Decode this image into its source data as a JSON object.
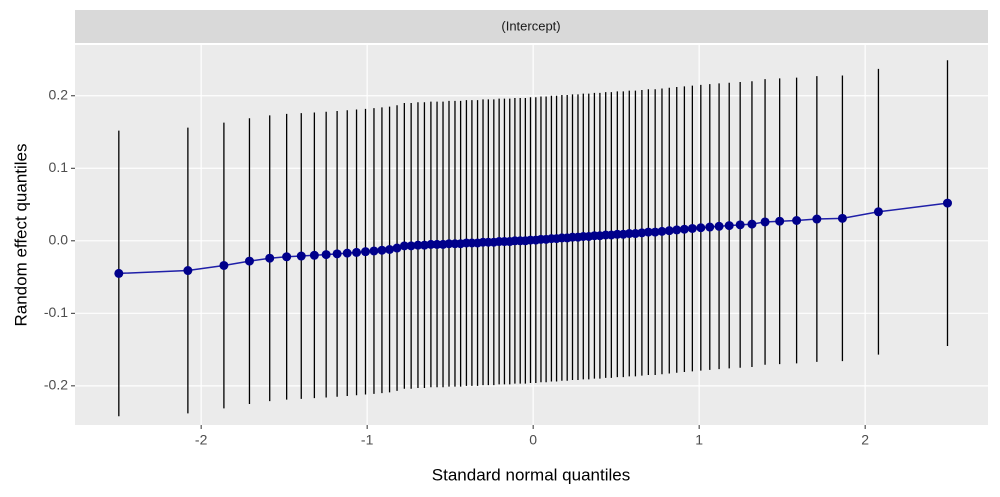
{
  "chart_data": {
    "type": "scatter",
    "panel_label": "(Intercept)",
    "x_label": "Standard normal quantiles",
    "y_label": "Random effect quantiles",
    "x": [
      -2.496,
      -2.08,
      -1.863,
      -1.709,
      -1.587,
      -1.485,
      -1.397,
      -1.318,
      -1.247,
      -1.181,
      -1.12,
      -1.064,
      -1.01,
      -0.959,
      -0.911,
      -0.865,
      -0.82,
      -0.776,
      -0.735,
      -0.694,
      -0.655,
      -0.616,
      -0.579,
      -0.543,
      -0.507,
      -0.471,
      -0.437,
      -0.402,
      -0.369,
      -0.335,
      -0.302,
      -0.27,
      -0.237,
      -0.205,
      -0.173,
      -0.141,
      -0.11,
      -0.078,
      -0.047,
      -0.016,
      0.016,
      0.047,
      0.078,
      0.11,
      0.141,
      0.173,
      0.205,
      0.237,
      0.27,
      0.302,
      0.335,
      0.369,
      0.402,
      0.437,
      0.471,
      0.507,
      0.543,
      0.579,
      0.616,
      0.655,
      0.694,
      0.735,
      0.776,
      0.82,
      0.865,
      0.911,
      0.959,
      1.01,
      1.064,
      1.12,
      1.181,
      1.247,
      1.318,
      1.397,
      1.485,
      1.587,
      1.709,
      1.863,
      2.08,
      2.496
    ],
    "series": [
      {
        "color": "#00008b",
        "line_color": "#1f1fa8",
        "error_color": "#000000",
        "error": 0.197,
        "values": [
          -0.045,
          -0.041,
          -0.034,
          -0.028,
          -0.024,
          -0.022,
          -0.021,
          -0.02,
          -0.019,
          -0.018,
          -0.017,
          -0.016,
          -0.015,
          -0.014,
          -0.013,
          -0.012,
          -0.01,
          -0.007,
          -0.007,
          -0.006,
          -0.006,
          -0.005,
          -0.005,
          -0.005,
          -0.004,
          -0.004,
          -0.004,
          -0.003,
          -0.003,
          -0.003,
          -0.002,
          -0.002,
          -0.002,
          -0.001,
          -0.001,
          -0.001,
          0.0,
          0.0,
          0.0,
          0.001,
          0.001,
          0.002,
          0.002,
          0.003,
          0.003,
          0.004,
          0.004,
          0.005,
          0.005,
          0.006,
          0.006,
          0.007,
          0.007,
          0.008,
          0.008,
          0.009,
          0.009,
          0.01,
          0.01,
          0.011,
          0.012,
          0.012,
          0.013,
          0.014,
          0.015,
          0.016,
          0.017,
          0.018,
          0.019,
          0.02,
          0.021,
          0.022,
          0.023,
          0.026,
          0.027,
          0.028,
          0.03,
          0.031,
          0.04,
          0.052
        ]
      }
    ],
    "xlim": [
      -2.76,
      2.74
    ],
    "ylim": [
      -0.254,
      0.27
    ],
    "xticks": [
      -2,
      -1,
      0,
      1,
      2
    ],
    "yticks": [
      -0.2,
      -0.1,
      {
        "value": 0,
        "label": "0.0"
      },
      0.1,
      0.2
    ],
    "grid": true
  }
}
